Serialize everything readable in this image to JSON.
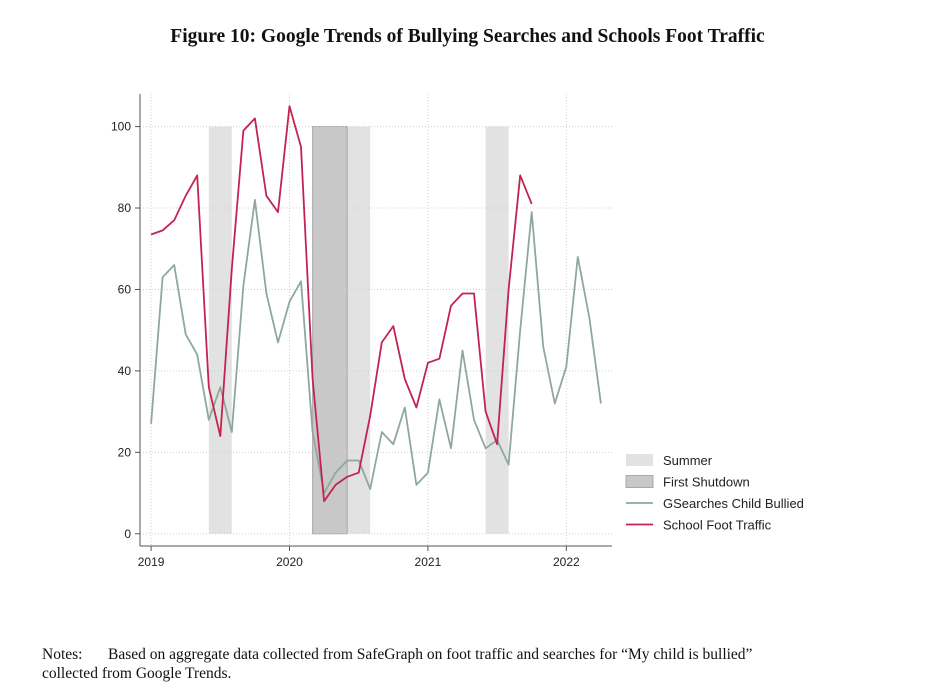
{
  "figure": {
    "title": "Figure 10:  Google Trends of Bullying Searches and Schools Foot Traffic",
    "notes_label": "Notes:",
    "notes_line1": "Based on aggregate data collected from  SafeGraph on foot traffic and searches for “My child is bullied”",
    "notes_line2": "collected from Google Trends."
  },
  "chart_data": {
    "type": "line",
    "title": "",
    "xlabel": "",
    "ylabel": "",
    "x_ticks": [
      {
        "value": 2019,
        "label": "2019"
      },
      {
        "value": 2020,
        "label": "2020"
      },
      {
        "value": 2021,
        "label": "2021"
      },
      {
        "value": 2022,
        "label": "2022"
      }
    ],
    "y_ticks": [
      0,
      20,
      40,
      60,
      80,
      100
    ],
    "xlim": [
      2018.92,
      2022.33
    ],
    "ylim": [
      -3,
      108
    ],
    "grid": true,
    "legend_position": "right",
    "shaded_regions": [
      {
        "name": "Summer",
        "start": 2019.417,
        "end": 2019.583,
        "color": "#e2e2e2"
      },
      {
        "name": "Summer",
        "start": 2020.417,
        "end": 2020.583,
        "color": "#e2e2e2"
      },
      {
        "name": "Summer",
        "start": 2021.417,
        "end": 2021.583,
        "color": "#e2e2e2"
      },
      {
        "name": "First Shutdown",
        "start": 2020.167,
        "end": 2020.417,
        "color": "#c8c8c8"
      }
    ],
    "series": [
      {
        "name": "GSearches Child Bullied",
        "color": "#8fa89d",
        "x": [
          2019.0,
          2019.083,
          2019.167,
          2019.25,
          2019.333,
          2019.417,
          2019.5,
          2019.583,
          2019.667,
          2019.75,
          2019.833,
          2019.917,
          2020.0,
          2020.083,
          2020.167,
          2020.25,
          2020.333,
          2020.417,
          2020.5,
          2020.583,
          2020.667,
          2020.75,
          2020.833,
          2020.917,
          2021.0,
          2021.083,
          2021.167,
          2021.25,
          2021.333,
          2021.417,
          2021.5,
          2021.583,
          2021.667,
          2021.75,
          2021.833,
          2021.917,
          2022.0,
          2022.083,
          2022.167,
          2022.25
        ],
        "values": [
          27,
          63,
          66,
          49,
          44,
          28,
          36,
          25,
          61,
          82,
          59,
          47,
          57,
          62,
          25,
          10,
          15,
          18,
          18,
          11,
          25,
          22,
          31,
          12,
          15,
          33,
          21,
          45,
          28,
          21,
          23,
          17,
          50,
          79,
          46,
          32,
          41,
          68,
          53,
          32
        ]
      },
      {
        "name": "School Foot Traffic",
        "color": "#c3244f",
        "x": [
          2019.0,
          2019.083,
          2019.167,
          2019.25,
          2019.333,
          2019.417,
          2019.5,
          2019.583,
          2019.667,
          2019.75,
          2019.833,
          2019.917,
          2020.0,
          2020.083,
          2020.167,
          2020.25,
          2020.333,
          2020.417,
          2020.5,
          2020.583,
          2020.667,
          2020.75,
          2020.833,
          2020.917,
          2021.0,
          2021.083,
          2021.167,
          2021.25,
          2021.333,
          2021.417,
          2021.5,
          2021.583,
          2021.667,
          2021.75
        ],
        "values": [
          73.5,
          74.5,
          77,
          83,
          88,
          36,
          24,
          65,
          99,
          102,
          83,
          79,
          105,
          95,
          38,
          8,
          12,
          14,
          15,
          29,
          47,
          51,
          38,
          31,
          42,
          43,
          56,
          59,
          59,
          30,
          22,
          60,
          88,
          81
        ]
      }
    ],
    "legend": [
      {
        "label": "Summer",
        "kind": "area",
        "color": "#e2e2e2"
      },
      {
        "label": "First Shutdown",
        "kind": "area",
        "color": "#c8c8c8"
      },
      {
        "label": "GSearches Child Bullied",
        "kind": "line",
        "color": "#8fa89d"
      },
      {
        "label": "School Foot Traffic",
        "kind": "line",
        "color": "#c3244f"
      }
    ]
  }
}
